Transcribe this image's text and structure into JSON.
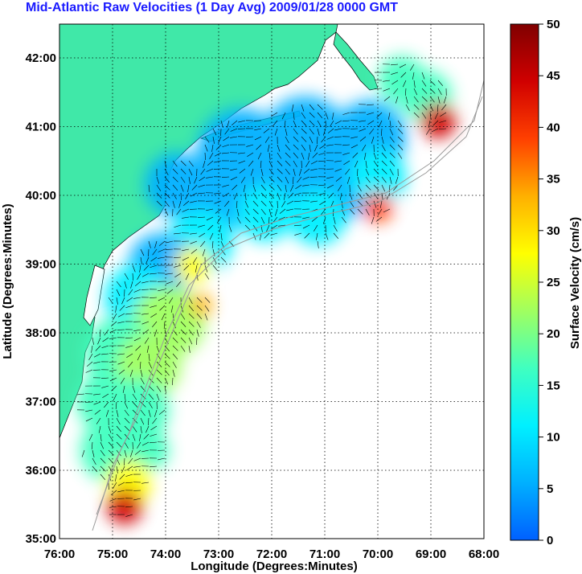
{
  "title": "Mid-Atlantic Raw Velocities (1 Day Avg) 2009/01/28 0000 GMT",
  "map": {
    "xlabel": "Longitude (Degrees:Minutes)",
    "ylabel": "Latitude (Degrees:Minutes)",
    "x_ticks": [
      "76:00",
      "75:00",
      "74:00",
      "73:00",
      "72:00",
      "71:00",
      "70:00",
      "69:00",
      "68:00"
    ],
    "y_ticks": [
      "42:00",
      "41:00",
      "40:00",
      "39:00",
      "38:00",
      "37:00",
      "36:00",
      "35:00"
    ],
    "lon_range": [
      -76,
      -68
    ],
    "lat_range": [
      35,
      42.5
    ],
    "grid": true,
    "land_color": "#40e8a8"
  },
  "colorbar": {
    "label": "Surface Velocity (cm/s)",
    "ticks": [
      "50",
      "45",
      "40",
      "35",
      "30",
      "25",
      "20",
      "15",
      "10",
      "5",
      "0"
    ],
    "range": [
      0,
      50
    ],
    "colors": [
      "#0060ff",
      "#00b0ff",
      "#00f0ff",
      "#40ffc0",
      "#a0ff60",
      "#ffff00",
      "#ffb000",
      "#ff4000",
      "#d00000",
      "#800000"
    ]
  }
}
